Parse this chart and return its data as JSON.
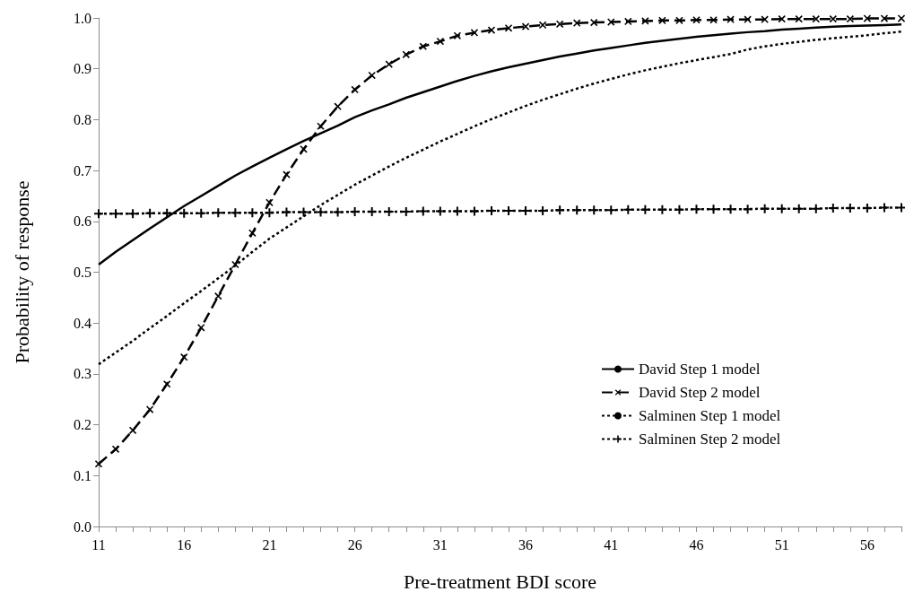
{
  "chart_data": {
    "type": "line",
    "xlabel": "Pre-treatment BDI score",
    "ylabel": "Probability of response",
    "x": [
      11,
      12,
      13,
      14,
      15,
      16,
      17,
      18,
      19,
      20,
      21,
      22,
      23,
      24,
      25,
      26,
      27,
      28,
      29,
      30,
      31,
      32,
      33,
      34,
      35,
      36,
      37,
      38,
      39,
      40,
      41,
      42,
      43,
      44,
      45,
      46,
      47,
      48,
      49,
      50,
      51,
      52,
      53,
      54,
      55,
      56,
      57,
      58
    ],
    "series": [
      {
        "name": "David Step 1 model",
        "color": "#000000",
        "line_style": "solid",
        "marker": "none",
        "values": [
          0.515,
          0.54,
          0.563,
          0.586,
          0.608,
          0.63,
          0.65,
          0.67,
          0.69,
          0.708,
          0.725,
          0.742,
          0.758,
          0.773,
          0.788,
          0.805,
          0.818,
          0.83,
          0.843,
          0.854,
          0.865,
          0.876,
          0.886,
          0.895,
          0.903,
          0.91,
          0.917,
          0.924,
          0.93,
          0.936,
          0.941,
          0.946,
          0.951,
          0.955,
          0.959,
          0.963,
          0.966,
          0.969,
          0.972,
          0.974,
          0.977,
          0.979,
          0.981,
          0.983,
          0.984,
          0.985,
          0.986,
          0.987
        ]
      },
      {
        "name": "David Step 2 model",
        "color": "#000000",
        "line_style": "dashed",
        "marker": "x",
        "values": [
          0.123,
          0.152,
          0.189,
          0.23,
          0.28,
          0.333,
          0.391,
          0.453,
          0.515,
          0.577,
          0.637,
          0.692,
          0.742,
          0.787,
          0.826,
          0.859,
          0.887,
          0.909,
          0.928,
          0.944,
          0.954,
          0.965,
          0.971,
          0.976,
          0.98,
          0.983,
          0.986,
          0.988,
          0.99,
          0.991,
          0.992,
          0.993,
          0.994,
          0.995,
          0.995,
          0.996,
          0.996,
          0.997,
          0.997,
          0.997,
          0.998,
          0.998,
          0.998,
          0.998,
          0.998,
          0.999,
          0.999,
          0.999
        ]
      },
      {
        "name": "Salminen Step 1 model",
        "color": "#000000",
        "line_style": "dotted",
        "marker": "none",
        "values": [
          0.319,
          0.342,
          0.365,
          0.39,
          0.414,
          0.439,
          0.463,
          0.488,
          0.513,
          0.54,
          0.566,
          0.588,
          0.61,
          0.632,
          0.652,
          0.672,
          0.69,
          0.708,
          0.725,
          0.741,
          0.757,
          0.772,
          0.787,
          0.801,
          0.814,
          0.827,
          0.839,
          0.85,
          0.861,
          0.871,
          0.88,
          0.889,
          0.897,
          0.904,
          0.911,
          0.917,
          0.923,
          0.929,
          0.938,
          0.944,
          0.949,
          0.953,
          0.957,
          0.96,
          0.963,
          0.966,
          0.97,
          0.973
        ]
      },
      {
        "name": "Salminen Step 2 model",
        "color": "#000000",
        "line_style": "dotted",
        "marker": "cross",
        "values": [
          0.615,
          0.615,
          0.615,
          0.616,
          0.616,
          0.616,
          0.616,
          0.617,
          0.617,
          0.617,
          0.617,
          0.618,
          0.618,
          0.618,
          0.618,
          0.619,
          0.619,
          0.619,
          0.619,
          0.62,
          0.62,
          0.62,
          0.62,
          0.621,
          0.621,
          0.621,
          0.621,
          0.622,
          0.622,
          0.622,
          0.622,
          0.623,
          0.623,
          0.623,
          0.623,
          0.624,
          0.624,
          0.624,
          0.624,
          0.625,
          0.625,
          0.625,
          0.625,
          0.626,
          0.626,
          0.626,
          0.627,
          0.627
        ]
      }
    ],
    "xlim": [
      11,
      58
    ],
    "xticks": [
      11,
      16,
      21,
      26,
      31,
      36,
      41,
      46,
      51,
      56
    ],
    "ylim": [
      0,
      1
    ],
    "yticks": [
      {
        "value": 0,
        "label": "0.0"
      },
      0.1,
      0.2,
      0.3,
      0.4,
      0.5,
      0.6,
      0.7,
      0.8,
      0.9,
      {
        "value": 1,
        "label": "1.0"
      }
    ],
    "grid": false,
    "legend": "bottom right"
  }
}
